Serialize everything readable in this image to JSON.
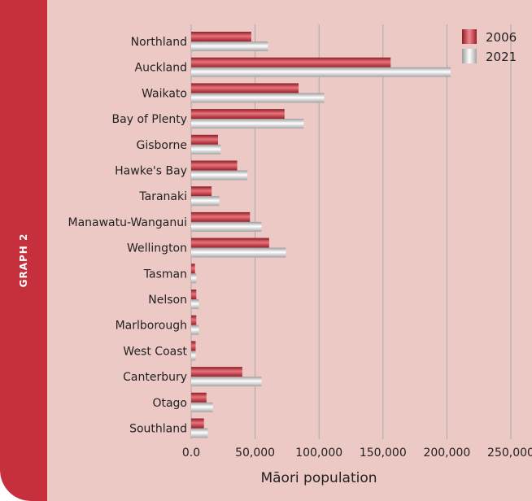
{
  "sidebar": {
    "label": "GRAPH 2"
  },
  "chart_data": {
    "type": "bar",
    "orientation": "horizontal",
    "title": "",
    "xlabel": "Māori population",
    "ylabel": "",
    "xlim": [
      0,
      250000
    ],
    "xticks": [
      0,
      50000,
      100000,
      150000,
      200000,
      250000
    ],
    "xtick_labels": [
      "0.0",
      "50,000",
      "100,000",
      "150,000",
      "200,000",
      "250,000"
    ],
    "grid": "vertical",
    "legend": "top-right",
    "categories": [
      "Northland",
      "Auckland",
      "Waikato",
      "Bay of Plenty",
      "Gisborne",
      "Hawke's Bay",
      "Taranaki",
      "Manawatu-Wanganui",
      "Wellington",
      "Tasman",
      "Nelson",
      "Marlborough",
      "West Coast",
      "Canterbury",
      "Otago",
      "Southland"
    ],
    "series": [
      {
        "name": "2006",
        "color": "#c0303d",
        "values": [
          47000,
          156000,
          84000,
          73000,
          21000,
          36000,
          16000,
          46000,
          61000,
          3000,
          4000,
          4000,
          3500,
          40000,
          12000,
          10000
        ]
      },
      {
        "name": "2021",
        "color": "#d4d4d6",
        "values": [
          60000,
          203000,
          104000,
          88000,
          23000,
          44000,
          22000,
          55000,
          74000,
          4000,
          6000,
          6000,
          3500,
          55000,
          17000,
          13000
        ]
      }
    ]
  }
}
